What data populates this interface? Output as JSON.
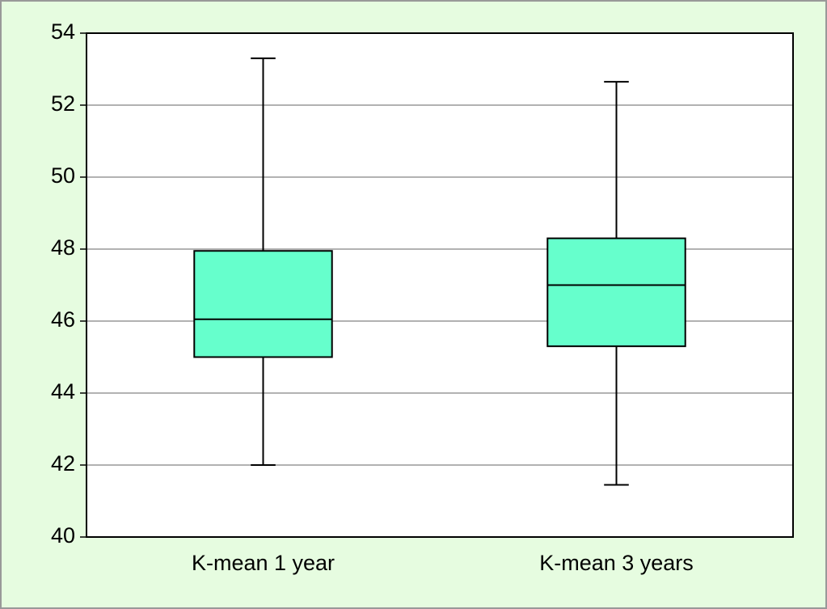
{
  "chart_data": {
    "type": "box",
    "categories": [
      "K-mean 1 year",
      "K-mean 3 years"
    ],
    "boxes": [
      {
        "min": 42.0,
        "q1": 45.0,
        "median": 46.05,
        "q3": 47.95,
        "max": 53.3
      },
      {
        "min": 41.45,
        "q1": 45.3,
        "median": 47.0,
        "q3": 48.3,
        "max": 52.65
      }
    ],
    "color": "#66ffcc",
    "ylim": [
      40,
      54
    ],
    "yticks": [
      40,
      42,
      44,
      46,
      48,
      50,
      52,
      54
    ],
    "grid": true
  }
}
